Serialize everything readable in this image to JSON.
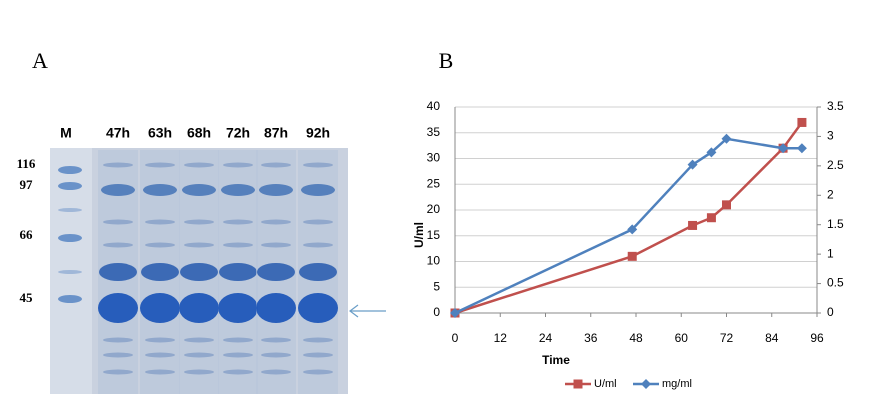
{
  "gel": {
    "label": "A",
    "lanes": [
      "M",
      "47h",
      "63h",
      "68h",
      "72h",
      "87h",
      "92h"
    ],
    "markers": [
      "116",
      "97",
      "66",
      "45"
    ]
  },
  "chart_data": {
    "type": "line",
    "label": "B",
    "xlabel": "Time",
    "ylabel": "U/ml",
    "x": [
      0,
      47,
      63,
      68,
      72,
      87,
      92
    ],
    "series": [
      {
        "name": "U/ml",
        "color": "#c0504d",
        "marker": "square",
        "values": [
          0,
          11,
          17,
          18.5,
          21,
          32,
          37
        ]
      },
      {
        "name": "mg/ml",
        "color": "#4f81bd",
        "marker": "diamond",
        "axis": "y2",
        "values": [
          0,
          1.42,
          2.52,
          2.73,
          2.96,
          2.8,
          2.8
        ]
      }
    ],
    "xlim": [
      0,
      96
    ],
    "xticks": [
      0,
      12,
      24,
      36,
      48,
      60,
      72,
      84,
      96
    ],
    "ylim": [
      0,
      40
    ],
    "yticks": [
      0,
      5,
      10,
      15,
      20,
      25,
      30,
      35,
      40
    ],
    "y2lim": [
      0,
      3.5
    ],
    "y2ticks": [
      0,
      0.5,
      1,
      1.5,
      2,
      2.5,
      3,
      3.5
    ],
    "grid": true,
    "legend": "bottom"
  }
}
